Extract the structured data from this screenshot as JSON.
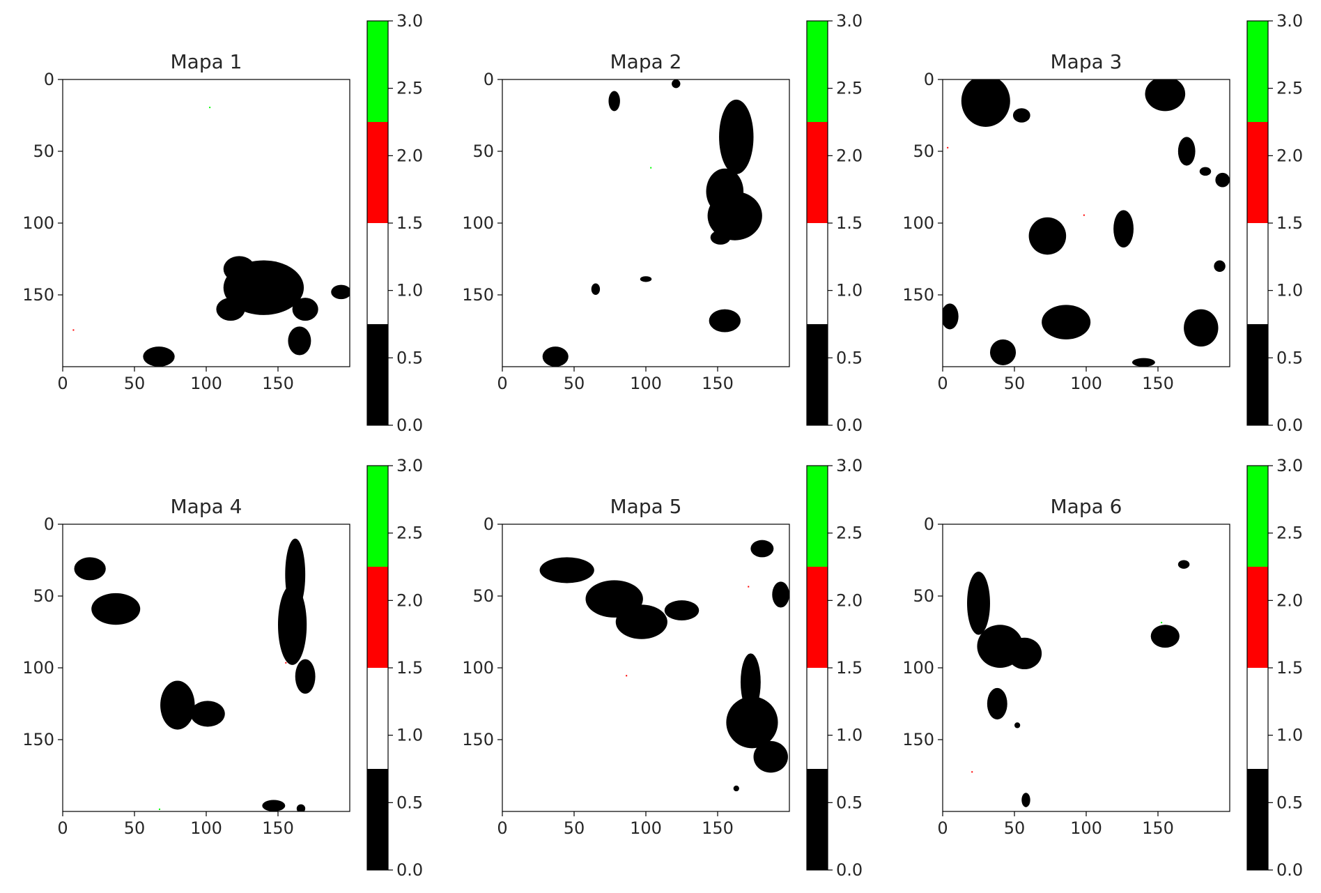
{
  "figure": {
    "colorbar_colors": [
      "#000000",
      "#ffffff",
      "#ff0000",
      "#00ff00"
    ],
    "colorbar_ticks": [
      "0.0",
      "0.5",
      "1.0",
      "1.5",
      "2.0",
      "2.5",
      "3.0"
    ]
  },
  "chart_data": [
    {
      "type": "heatmap",
      "title": "Mapa 1",
      "xlim": [
        0,
        200
      ],
      "ylim": [
        200,
        0
      ],
      "x_ticks": [
        "0",
        "50",
        "100",
        "150"
      ],
      "y_ticks": [
        "0",
        "50",
        "100",
        "150"
      ],
      "value_scale": [
        0,
        3
      ],
      "background_value": 1,
      "blobs_value0": [
        [
          140,
          145,
          28,
          19
        ],
        [
          123,
          132,
          11,
          9
        ],
        [
          169,
          160,
          9,
          8
        ],
        [
          165,
          182,
          8,
          10
        ],
        [
          117,
          160,
          10,
          8
        ],
        [
          157,
          144,
          9,
          7
        ],
        [
          194,
          148,
          7,
          5
        ],
        [
          67,
          193,
          11,
          7
        ]
      ],
      "points": [
        [
          102,
          19,
          3
        ],
        [
          7,
          174,
          2
        ]
      ]
    },
    {
      "type": "heatmap",
      "title": "Mapa 2",
      "xlim": [
        0,
        200
      ],
      "ylim": [
        200,
        0
      ],
      "x_ticks": [
        "0",
        "50",
        "100",
        "150"
      ],
      "y_ticks": [
        "0",
        "50",
        "100",
        "150"
      ],
      "value_scale": [
        0,
        3
      ],
      "background_value": 1,
      "blobs_value0": [
        [
          163,
          40,
          12,
          26
        ],
        [
          155,
          78,
          13,
          16
        ],
        [
          162,
          95,
          19,
          17
        ],
        [
          152,
          110,
          7,
          5
        ],
        [
          78,
          15,
          4,
          7
        ],
        [
          121,
          3,
          3,
          3
        ],
        [
          155,
          168,
          11,
          8
        ],
        [
          65,
          146,
          3,
          4
        ],
        [
          100,
          139,
          4,
          2
        ],
        [
          37,
          193,
          9,
          7
        ]
      ],
      "points": [
        [
          103,
          61,
          3
        ]
      ]
    },
    {
      "type": "heatmap",
      "title": "Mapa 3",
      "xlim": [
        0,
        200
      ],
      "ylim": [
        200,
        0
      ],
      "x_ticks": [
        "0",
        "50",
        "100",
        "150"
      ],
      "y_ticks": [
        "0",
        "50",
        "100",
        "150"
      ],
      "value_scale": [
        0,
        3
      ],
      "background_value": 1,
      "blobs_value0": [
        [
          30,
          15,
          17,
          18
        ],
        [
          55,
          25,
          6,
          5
        ],
        [
          155,
          10,
          14,
          12
        ],
        [
          170,
          50,
          6,
          10
        ],
        [
          183,
          64,
          4,
          3
        ],
        [
          195,
          70,
          5,
          5
        ],
        [
          73,
          109,
          13,
          13
        ],
        [
          126,
          104,
          7,
          13
        ],
        [
          86,
          169,
          17,
          12
        ],
        [
          180,
          173,
          12,
          13
        ],
        [
          5,
          165,
          6,
          9
        ],
        [
          42,
          190,
          9,
          9
        ],
        [
          140,
          197,
          8,
          3
        ],
        [
          193,
          130,
          4,
          4
        ]
      ],
      "points": [
        [
          3,
          47,
          2
        ],
        [
          98,
          94,
          2
        ]
      ]
    },
    {
      "type": "heatmap",
      "title": "Mapa 4",
      "xlim": [
        0,
        200
      ],
      "ylim": [
        200,
        0
      ],
      "x_ticks": [
        "0",
        "50",
        "100",
        "150"
      ],
      "y_ticks": [
        "0",
        "50",
        "100",
        "150"
      ],
      "value_scale": [
        0,
        3
      ],
      "background_value": 1,
      "blobs_value0": [
        [
          19,
          31,
          11,
          8
        ],
        [
          37,
          59,
          17,
          11
        ],
        [
          80,
          126,
          12,
          17
        ],
        [
          101,
          132,
          12,
          9
        ],
        [
          162,
          35,
          7,
          25
        ],
        [
          160,
          70,
          10,
          28
        ],
        [
          169,
          106,
          7,
          12
        ],
        [
          147,
          196,
          8,
          4
        ],
        [
          166,
          198,
          3,
          3
        ]
      ],
      "points": [
        [
          155,
          96,
          2
        ],
        [
          67,
          198,
          3
        ]
      ]
    },
    {
      "type": "heatmap",
      "title": "Mapa 5",
      "xlim": [
        0,
        200
      ],
      "ylim": [
        200,
        0
      ],
      "x_ticks": [
        "0",
        "50",
        "100",
        "150"
      ],
      "y_ticks": [
        "0",
        "50",
        "100",
        "150"
      ],
      "value_scale": [
        0,
        3
      ],
      "background_value": 1,
      "blobs_value0": [
        [
          45,
          32,
          19,
          9
        ],
        [
          78,
          52,
          20,
          13
        ],
        [
          97,
          68,
          18,
          12
        ],
        [
          125,
          60,
          12,
          7
        ],
        [
          173,
          110,
          7,
          20
        ],
        [
          174,
          138,
          18,
          18
        ],
        [
          187,
          162,
          12,
          11
        ],
        [
          181,
          17,
          8,
          6
        ],
        [
          194,
          49,
          6,
          9
        ],
        [
          163,
          184,
          2,
          2
        ]
      ],
      "points": [
        [
          171,
          43,
          2
        ],
        [
          86,
          105,
          2
        ]
      ]
    },
    {
      "type": "heatmap",
      "title": "Mapa 6",
      "xlim": [
        0,
        200
      ],
      "ylim": [
        200,
        0
      ],
      "x_ticks": [
        "0",
        "50",
        "100",
        "150"
      ],
      "y_ticks": [
        "0",
        "50",
        "100",
        "150"
      ],
      "value_scale": [
        0,
        3
      ],
      "background_value": 1,
      "blobs_value0": [
        [
          25,
          55,
          8,
          22
        ],
        [
          40,
          85,
          16,
          15
        ],
        [
          57,
          90,
          12,
          11
        ],
        [
          38,
          125,
          7,
          11
        ],
        [
          155,
          78,
          10,
          8
        ],
        [
          168,
          28,
          4,
          3
        ],
        [
          58,
          192,
          3,
          5
        ],
        [
          52,
          140,
          2,
          2
        ]
      ],
      "points": [
        [
          20,
          172,
          2
        ],
        [
          152,
          68,
          3
        ]
      ]
    }
  ]
}
